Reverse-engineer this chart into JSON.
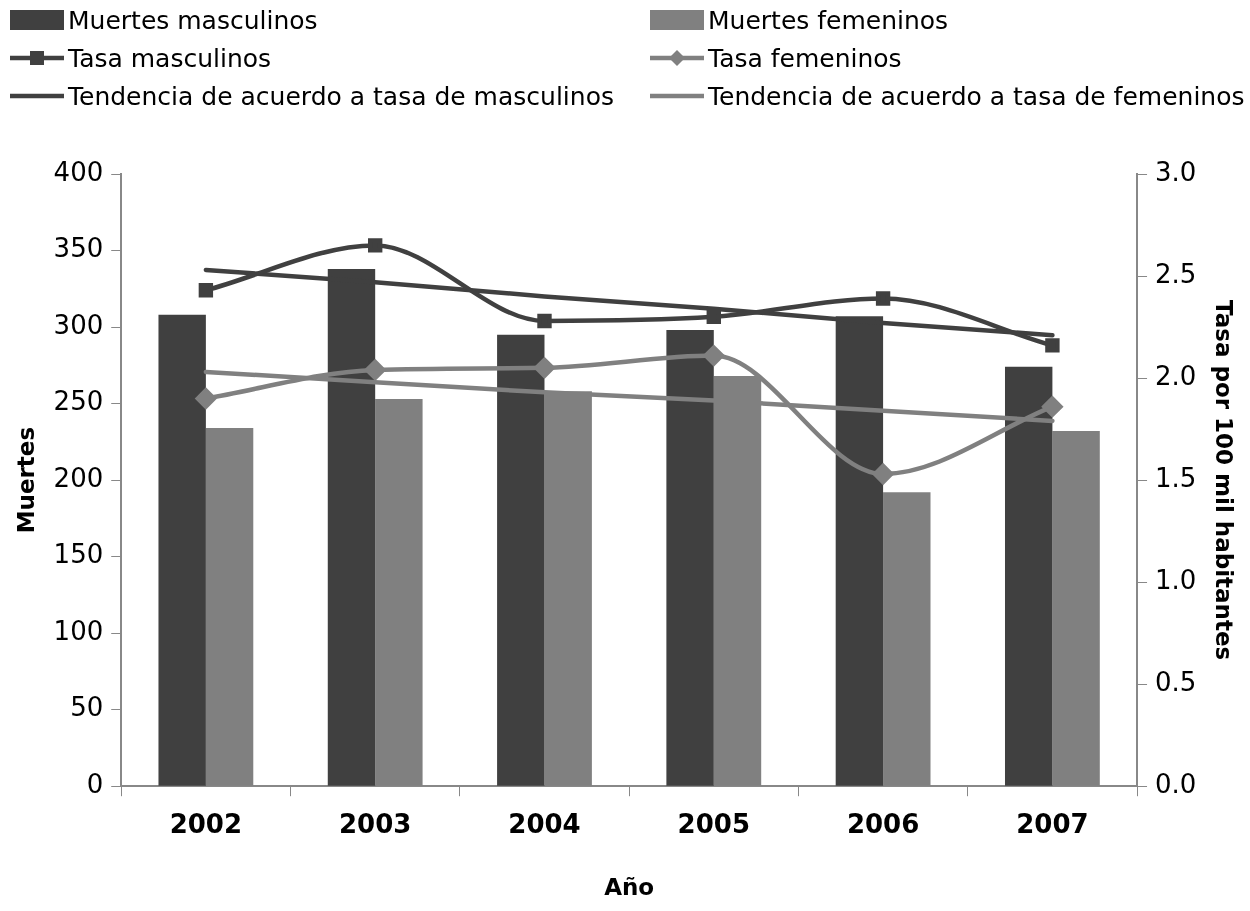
{
  "chart_data": {
    "type": "bar",
    "xlabel": "Año",
    "ylabel": "Muertes",
    "y2label": "Tasa por 100 mil habitantes",
    "categories": [
      "2002",
      "2003",
      "2004",
      "2005",
      "2006",
      "2007"
    ],
    "series": [
      {
        "name": "Muertes masculinos",
        "color": "#404040",
        "values": [
          308,
          338,
          295,
          298,
          307,
          274
        ]
      },
      {
        "name": "Muertes femeninos",
        "color": "#808080",
        "values": [
          234,
          253,
          258,
          268,
          192,
          232
        ]
      },
      {
        "name": "Tasa masculinos",
        "type": "line",
        "axis": "y2",
        "marker": "square",
        "color": "#404040",
        "values": [
          2.43,
          2.65,
          2.28,
          2.3,
          2.39,
          2.16
        ]
      },
      {
        "name": "Tasa femeninos",
        "type": "line",
        "axis": "y2",
        "marker": "diamond",
        "color": "#808080",
        "values": [
          1.9,
          2.04,
          2.05,
          2.11,
          1.53,
          1.86
        ]
      },
      {
        "name": "Tendencia de acuerdo a tasa de masculinos",
        "type": "line",
        "axis": "y2",
        "marker": "none",
        "color": "#404040",
        "values": [
          2.53,
          2.47,
          2.4,
          2.34,
          2.27,
          2.21
        ]
      },
      {
        "name": "Tendencia de acuerdo a tasa de femeninos",
        "type": "line",
        "axis": "y2",
        "marker": "none",
        "color": "#808080",
        "values": [
          2.03,
          1.98,
          1.93,
          1.89,
          1.84,
          1.79
        ]
      }
    ],
    "ylim": [
      0,
      400
    ],
    "yticks": [
      0,
      50,
      100,
      150,
      200,
      250,
      300,
      350,
      400
    ],
    "y2lim": [
      0,
      3.0
    ],
    "y2ticks": [
      {
        "value": 0,
        "label": "0.0"
      },
      {
        "value": 0.5,
        "label": "0.5"
      },
      {
        "value": 1,
        "label": "1.0"
      },
      {
        "value": 1.5,
        "label": "1.5"
      },
      {
        "value": 2,
        "label": "2.0"
      },
      {
        "value": 2.5,
        "label": "2.5"
      },
      {
        "value": 3,
        "label": "3.0"
      }
    ],
    "grid": false,
    "legend": "top"
  }
}
